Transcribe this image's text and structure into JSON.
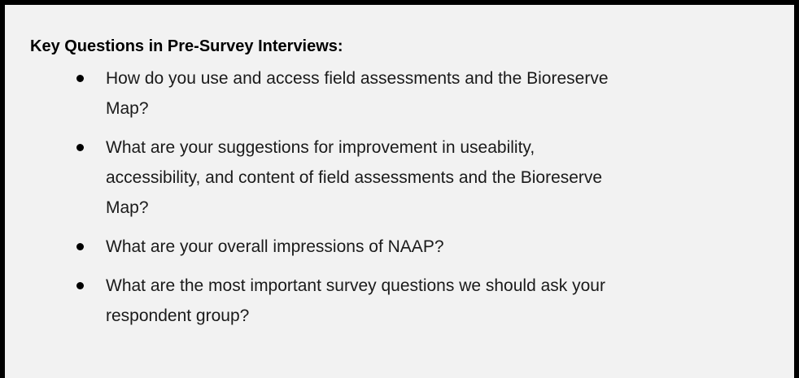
{
  "box": {
    "title": "Key Questions in Pre-Survey Interviews:",
    "items": [
      {
        "lines": [
          "How do you use and access field assessments and the Bioreserve",
          "Map?"
        ]
      },
      {
        "lines": [
          "What are your suggestions for improvement in useability,",
          "accessibility, and content of field assessments and the Bioreserve",
          "Map?"
        ]
      },
      {
        "lines": [
          "What are your overall impressions of NAAP?"
        ]
      },
      {
        "lines": [
          "What are the most important survey questions we should ask your",
          "respondent group?"
        ]
      }
    ]
  }
}
